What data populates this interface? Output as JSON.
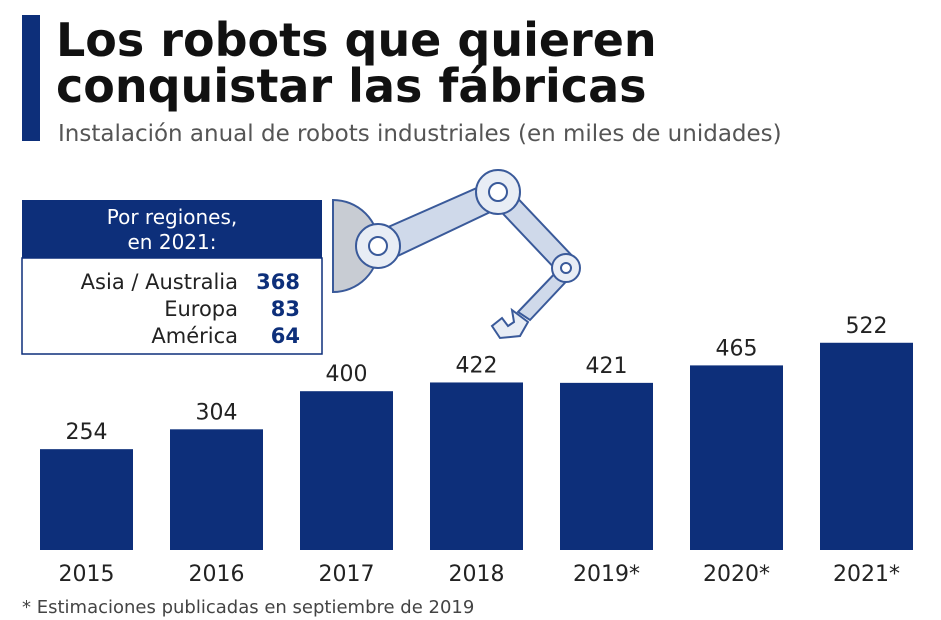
{
  "chart_data": {
    "type": "bar",
    "title": [
      "Los robots que quieren",
      "conquistar las fábricas"
    ],
    "subtitle": "Instalación anual de robots industriales (en miles de unidades)",
    "categories": [
      "2015",
      "2016",
      "2017",
      "2018",
      "2019*",
      "2020*",
      "2021*"
    ],
    "values": [
      254,
      304,
      400,
      422,
      421,
      465,
      522
    ],
    "color": "#0d2f7a",
    "note": "* Estimaciones publicadas en septiembre de 2019",
    "inset": {
      "title": [
        "Por regiones,",
        "en 2021:"
      ],
      "categories": [
        "Asia / Australia",
        "Europa",
        "América"
      ],
      "values": [
        368,
        83,
        64
      ]
    }
  }
}
